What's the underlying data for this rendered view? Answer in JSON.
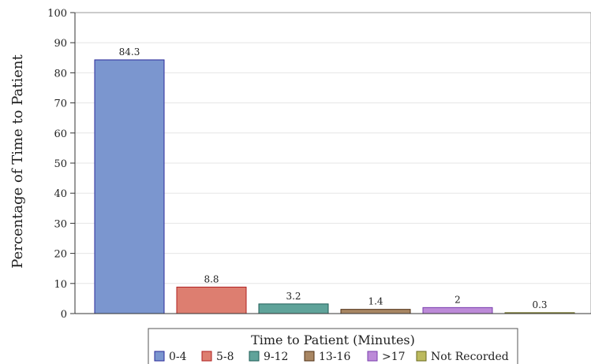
{
  "chart_data": {
    "type": "bar",
    "title": "",
    "xlabel": "",
    "ylabel": "Percentage of Time to Patient",
    "ylim": [
      0,
      100
    ],
    "yticks": [
      0,
      10,
      20,
      30,
      40,
      50,
      60,
      70,
      80,
      90,
      100
    ],
    "grid": "horizontal",
    "legend": {
      "title": "Time to Patient (Minutes)",
      "placement": "bottom"
    },
    "categories": [
      "0-4",
      "5-8",
      "9-12",
      "13-16",
      ">17",
      "Not Recorded"
    ],
    "values": [
      84.3,
      8.8,
      3.2,
      1.4,
      2,
      0.3
    ],
    "data_labels": [
      "84.3",
      "8.8",
      "3.2",
      "1.4",
      "2",
      "0.3"
    ],
    "colors": [
      {
        "fill": "#7b96cf",
        "stroke": "#2a2a9a"
      },
      {
        "fill": "#dd7e70",
        "stroke": "#b02020"
      },
      {
        "fill": "#5fa39a",
        "stroke": "#1f5d57"
      },
      {
        "fill": "#a88663",
        "stroke": "#4f3014"
      },
      {
        "fill": "#bc8ad8",
        "stroke": "#7a3fae"
      },
      {
        "fill": "#bcba5e",
        "stroke": "#6a6a1f"
      }
    ]
  }
}
